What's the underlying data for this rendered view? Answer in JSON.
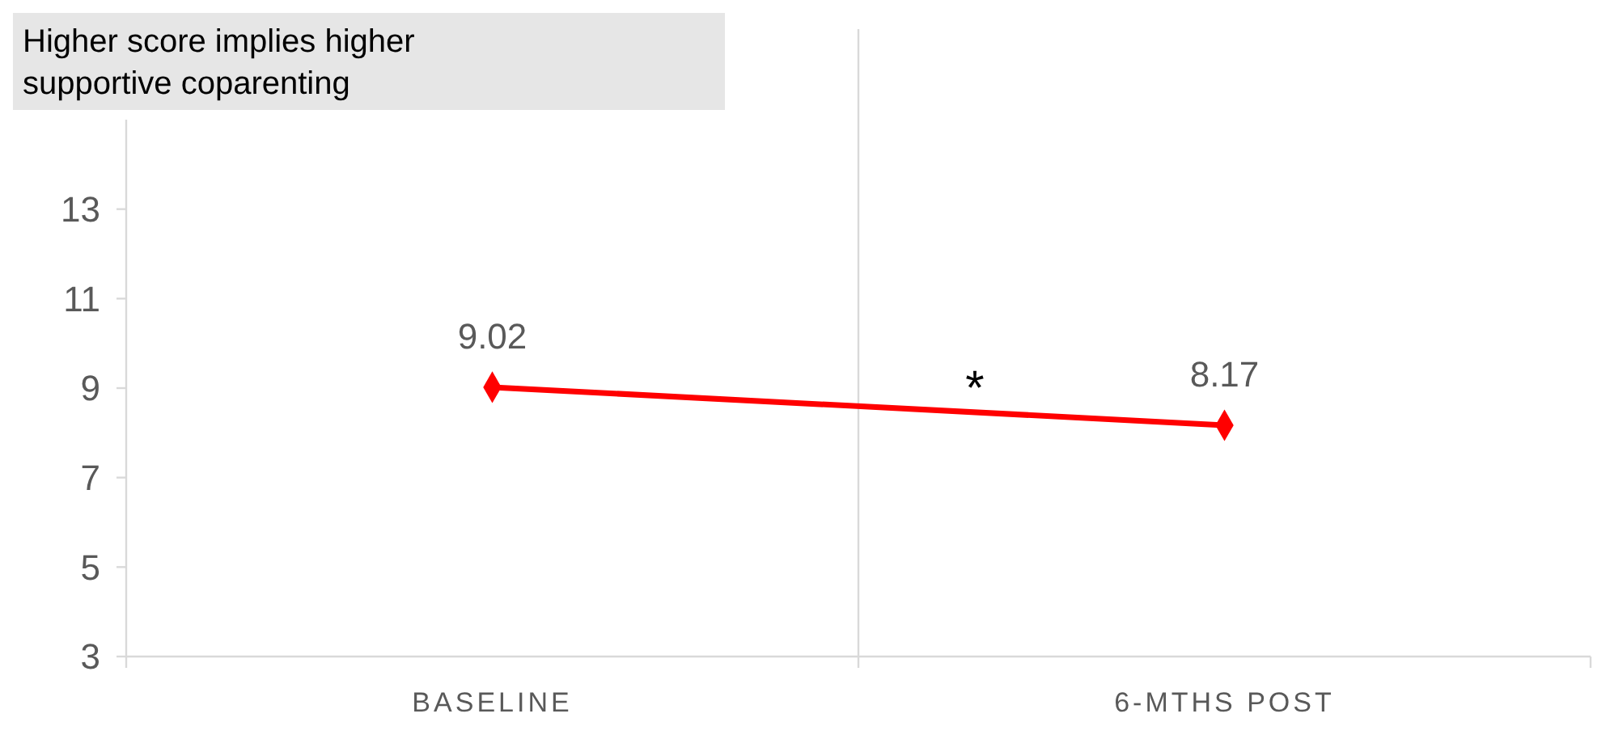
{
  "chart_data": {
    "type": "line",
    "categories": [
      "BASELINE",
      "6-MTHS POST"
    ],
    "series": [
      {
        "color": "#ff0000",
        "values": [
          9.02,
          8.17
        ]
      }
    ],
    "ylim": [
      3,
      15
    ],
    "yticks": [
      3,
      5,
      7,
      9,
      11,
      13
    ],
    "grid": "x",
    "marker": "diamond",
    "data_labels": true,
    "annotations": [
      "Higher score implies higher supportive coparenting",
      "*"
    ]
  }
}
